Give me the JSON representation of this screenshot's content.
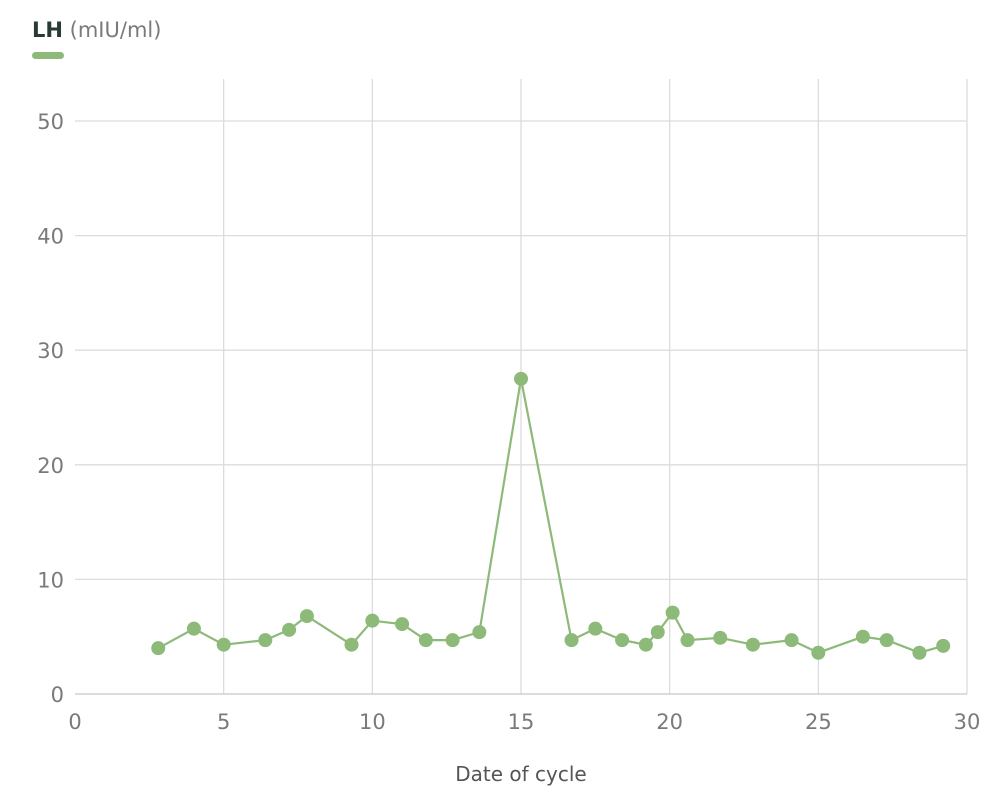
{
  "legend": {
    "series_name": "LH",
    "unit": "(mIU/ml)"
  },
  "colors": {
    "series": "#8dba79"
  },
  "chart_data": {
    "type": "line",
    "title": "",
    "xlabel": "Date of cycle",
    "ylabel": "",
    "xlim": [
      0,
      30
    ],
    "ylim": [
      0,
      50
    ],
    "x_ticks": [
      "0",
      "5",
      "10",
      "15",
      "20",
      "25",
      "30"
    ],
    "y_ticks": [
      "0",
      "10",
      "20",
      "30",
      "40",
      "50"
    ],
    "grid": true,
    "legend_position": "top-left",
    "series": [
      {
        "name": "LH",
        "unit": "mIU/ml",
        "x": [
          2.8,
          4.0,
          5.0,
          6.4,
          7.2,
          7.8,
          9.3,
          10.0,
          11.0,
          11.8,
          12.7,
          13.6,
          15.0,
          16.7,
          17.5,
          18.4,
          19.2,
          19.6,
          20.1,
          20.6,
          21.7,
          22.8,
          24.1,
          25.0,
          26.5,
          27.3,
          28.4,
          29.2
        ],
        "y": [
          4.0,
          5.7,
          4.3,
          4.7,
          5.6,
          6.8,
          4.3,
          6.4,
          6.1,
          4.7,
          4.7,
          5.4,
          27.5,
          4.7,
          5.7,
          4.7,
          4.3,
          5.4,
          7.1,
          4.7,
          4.9,
          4.3,
          4.7,
          3.6,
          5.0,
          4.7,
          3.6,
          4.2
        ]
      }
    ]
  }
}
